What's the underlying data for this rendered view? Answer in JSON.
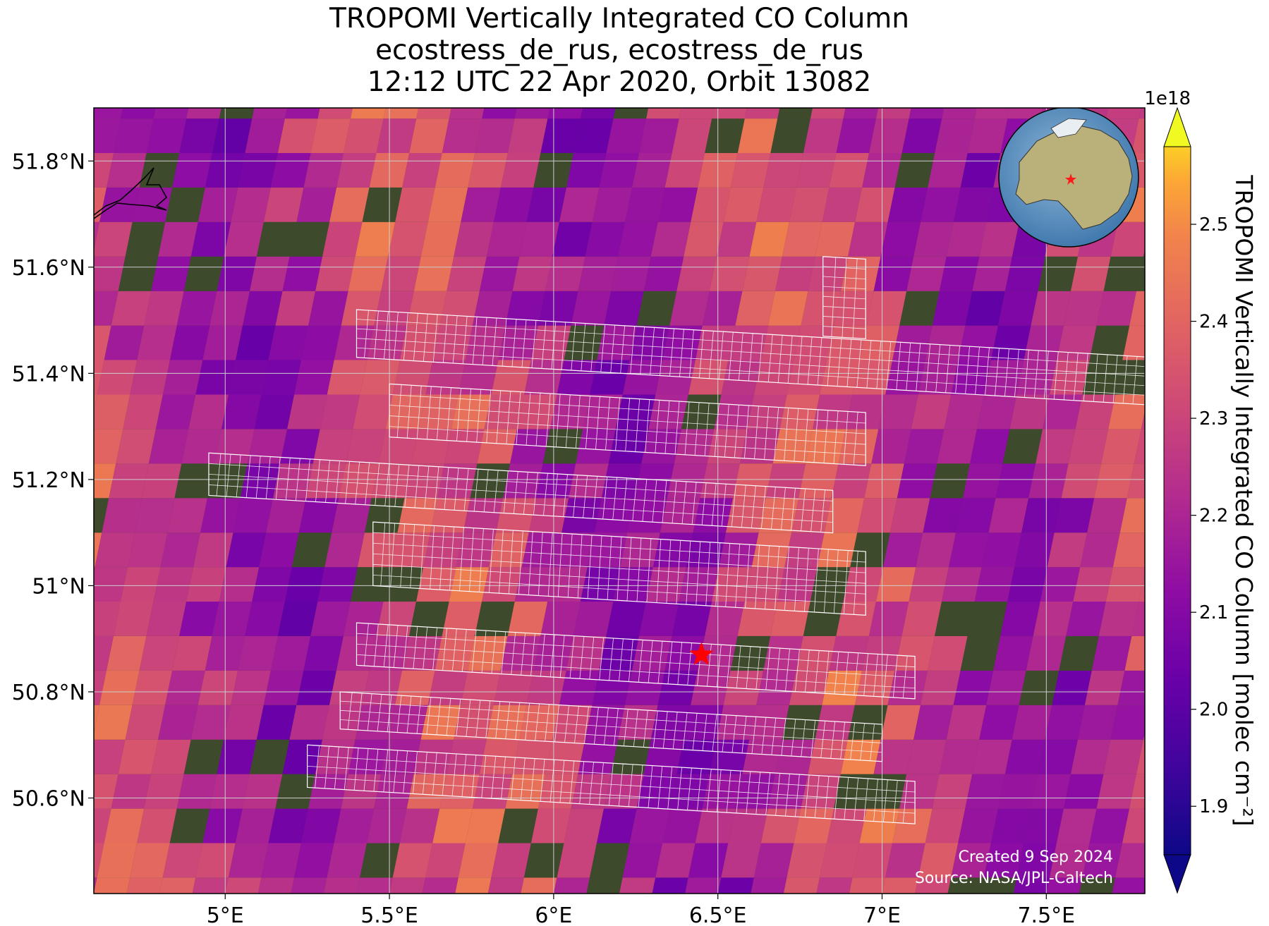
{
  "title": {
    "line1": "TROPOMI Vertically Integrated CO Column",
    "line2": "ecostress_de_rus, ecostress_de_rus",
    "line3": "12:12 UTC 22 Apr 2020, Orbit 13082"
  },
  "credits": {
    "created": "Created 9 Sep 2024",
    "source": "Source: NASA/JPL-Caltech"
  },
  "colorbar": {
    "label": "TROPOMI Vertically Integrated CO Column [molec cm⁻²]",
    "offset": "1e18",
    "ticks": [
      "1.9",
      "2.0",
      "2.1",
      "2.2",
      "2.3",
      "2.4",
      "2.5"
    ],
    "colormap": "plasma",
    "extend": "both"
  },
  "chart_data": {
    "type": "heatmap",
    "projection": "map",
    "xlim": [
      4.6,
      7.8
    ],
    "ylim": [
      50.42,
      51.9
    ],
    "xticks": [
      "5°E",
      "5.5°E",
      "6°E",
      "6.5°E",
      "7°E",
      "7.5°E"
    ],
    "xtick_values": [
      5.0,
      5.5,
      6.0,
      6.5,
      7.0,
      7.5
    ],
    "yticks": [
      "50.6°N",
      "50.8°N",
      "51°N",
      "51.2°N",
      "51.4°N",
      "51.6°N",
      "51.8°N"
    ],
    "ytick_values": [
      50.6,
      50.8,
      51.0,
      51.2,
      51.4,
      51.6,
      51.8
    ],
    "grid": true,
    "vmin": 1.85,
    "vmax": 2.58,
    "value_scale": "1e18",
    "pixel_tilt_deg_per_deg": 0.33,
    "pixel_size_deg": [
      0.1,
      0.065
    ],
    "observation_site": {
      "lon": 6.45,
      "lat": 50.87,
      "marker": "red-star"
    },
    "globe_inset": {
      "marker": "red-star"
    },
    "ecostress_swaths": [
      {
        "lon": [
          4.95,
          6.85
        ],
        "lat": [
          51.17,
          51.25
        ]
      },
      {
        "lon": [
          5.5,
          6.95
        ],
        "lat": [
          51.28,
          51.38
        ]
      },
      {
        "lon": [
          5.4,
          7.8
        ],
        "lat": [
          51.43,
          51.52
        ]
      },
      {
        "lon": [
          6.82,
          6.95
        ],
        "lat": [
          51.47,
          51.62
        ]
      },
      {
        "lon": [
          5.45,
          6.95
        ],
        "lat": [
          51.0,
          51.12
        ]
      },
      {
        "lon": [
          5.4,
          7.1
        ],
        "lat": [
          50.85,
          50.93
        ]
      },
      {
        "lon": [
          5.35,
          7.0
        ],
        "lat": [
          50.73,
          50.8
        ]
      },
      {
        "lon": [
          5.25,
          7.1
        ],
        "lat": [
          50.62,
          50.7
        ]
      }
    ]
  }
}
